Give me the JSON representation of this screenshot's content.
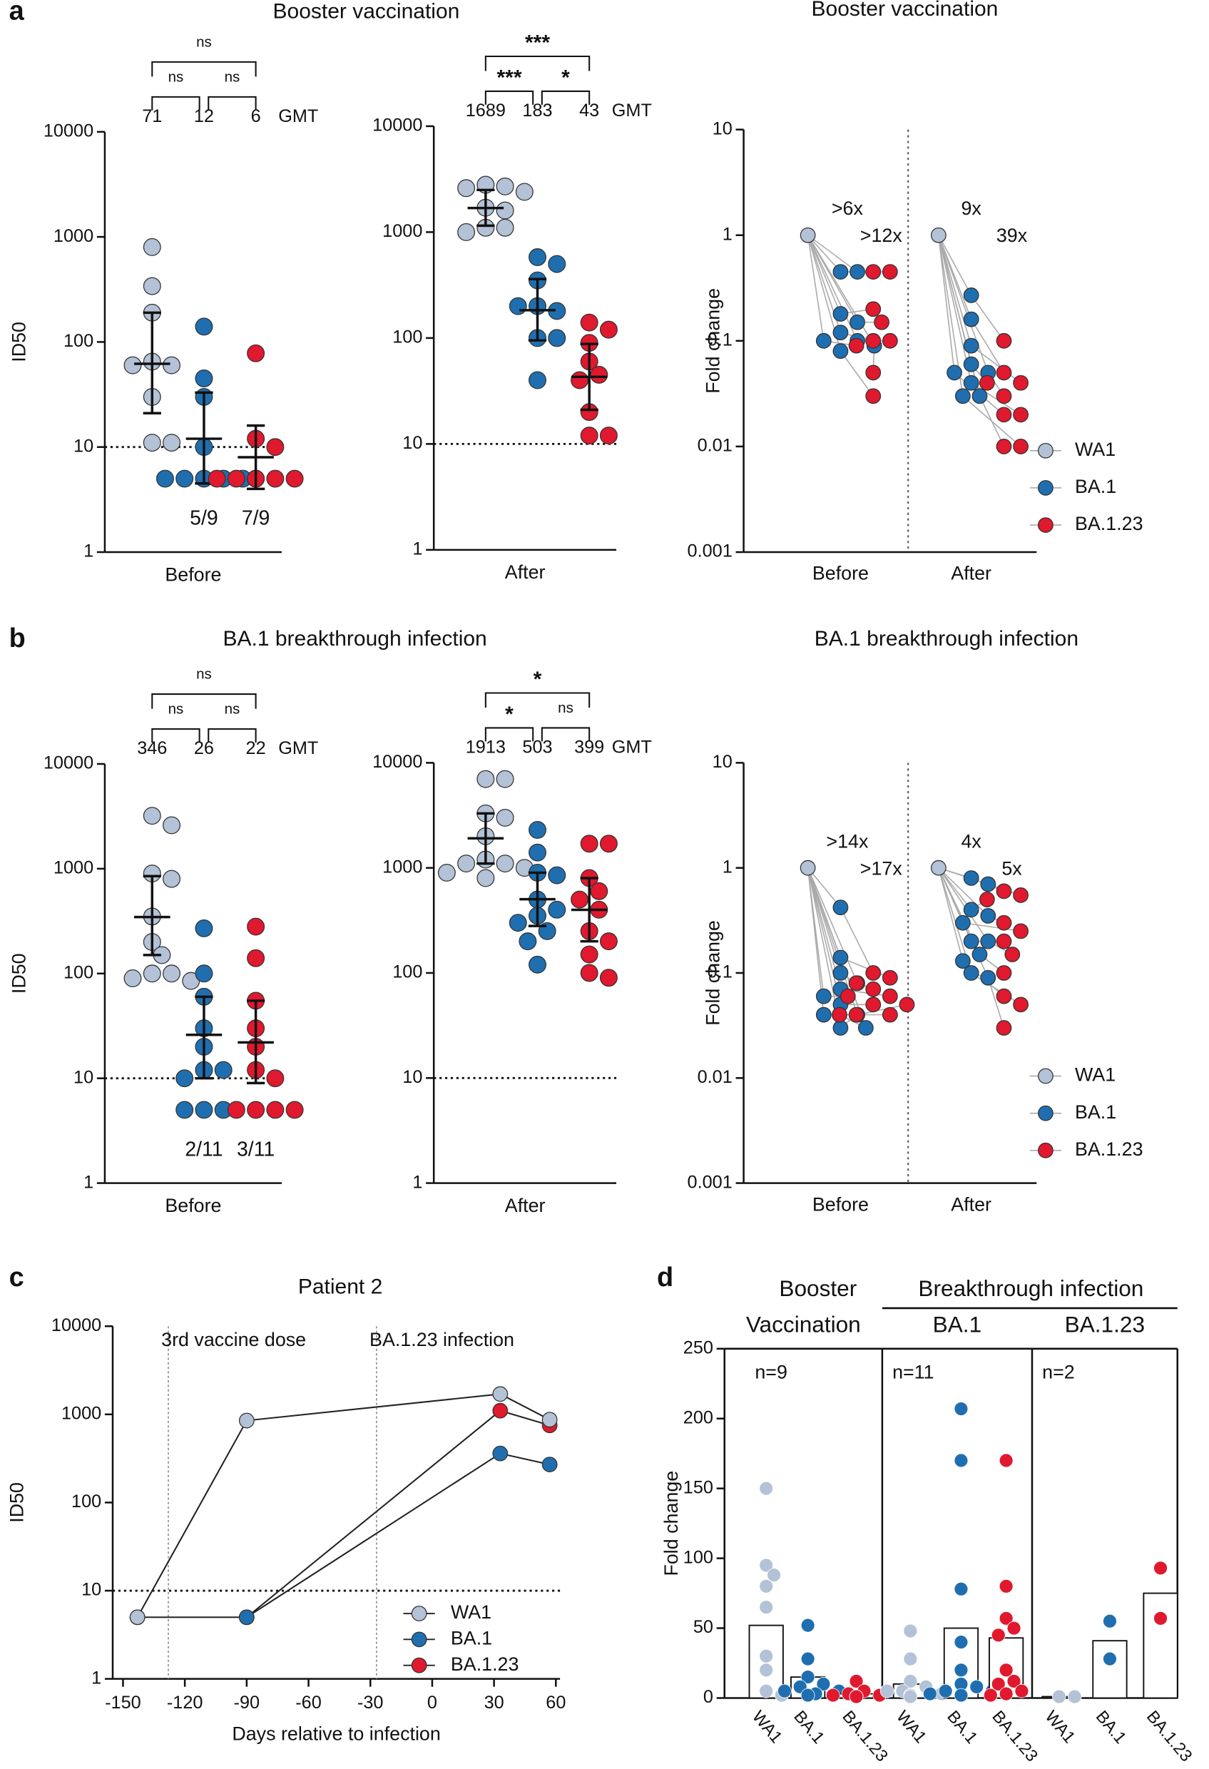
{
  "chart_data": [
    {
      "type": "dot",
      "panel": "a",
      "title": "Booster vaccination",
      "ylabel": "ID50",
      "xlabel": "Before",
      "log": true,
      "ylim": [
        1,
        10000
      ],
      "yticks": [
        1,
        10,
        100,
        1000,
        10000
      ],
      "lod": 10,
      "gmt_label": "GMT",
      "brackets": [
        "ns",
        "ns",
        "ns"
      ],
      "series": [
        {
          "color": "#b3c2d6",
          "values": [
            800,
            340,
            190,
            65,
            60,
            60,
            30,
            11,
            11
          ],
          "gmt": 71,
          "center": 62,
          "ci": [
            21,
            190
          ]
        },
        {
          "color": "#1f6fb0",
          "values": [
            140,
            45,
            30,
            10,
            5,
            5,
            5,
            5,
            5
          ],
          "gmt": 12,
          "center": 12,
          "ci": [
            4.5,
            33
          ],
          "count": "5/9"
        },
        {
          "color": "#e0192e",
          "values": [
            78,
            12,
            10,
            5,
            5,
            5,
            5,
            5,
            5
          ],
          "gmt": 6,
          "center": 8,
          "ci": [
            4,
            16
          ],
          "count": "7/9"
        }
      ]
    },
    {
      "type": "dot",
      "xlabel": "After",
      "log": true,
      "ylim": [
        1,
        10000
      ],
      "yticks": [
        1,
        10,
        100,
        1000,
        10000
      ],
      "lod": 10,
      "gmt_label": "GMT",
      "brackets": [
        "***",
        "***",
        "*"
      ],
      "series": [
        {
          "color": "#b3c2d6",
          "values": [
            2800,
            2700,
            2600,
            2400,
            1700,
            1600,
            1100,
            1100,
            1000
          ],
          "gmt": 1689,
          "center": 1689,
          "ci": [
            1150,
            2500
          ]
        },
        {
          "color": "#1f6fb0",
          "values": [
            580,
            500,
            350,
            200,
            180,
            100,
            100,
            40,
            200
          ],
          "gmt": 183,
          "center": 183,
          "ci": [
            95,
            360
          ]
        },
        {
          "color": "#e0192e",
          "values": [
            140,
            120,
            90,
            60,
            45,
            40,
            20,
            12,
            12
          ],
          "gmt": 43,
          "center": 43,
          "ci": [
            21,
            88
          ]
        }
      ]
    },
    {
      "type": "paired",
      "title": "Booster vaccination",
      "ylabel": "Fold change",
      "categories": [
        "Before",
        "After"
      ],
      "log": true,
      "ylim": [
        0.001,
        10
      ],
      "yticks": [
        0.001,
        0.01,
        0.1,
        1,
        10
      ],
      "series": [
        {
          "name": "WA1",
          "color": "#b3c2d6",
          "values": [
            [
              1
            ],
            [
              1
            ]
          ]
        },
        {
          "name": "BA.1",
          "color": "#1f6fb0",
          "values": [
            [
              0.45,
              0.45,
              0.18,
              0.15,
              0.12,
              0.1,
              0.1,
              0.09,
              0.08
            ],
            [
              0.27,
              0.16,
              0.09,
              0.06,
              0.05,
              0.05,
              0.04,
              0.03,
              0.03
            ]
          ]
        },
        {
          "name": "BA.1.23",
          "color": "#e0192e",
          "values": [
            [
              0.45,
              0.45,
              0.2,
              0.15,
              0.1,
              0.1,
              0.09,
              0.05,
              0.03
            ],
            [
              0.1,
              0.05,
              0.04,
              0.04,
              0.03,
              0.02,
              0.02,
              0.01,
              0.01
            ]
          ]
        }
      ],
      "annotations": [
        {
          "text": ">6x",
          "color": "#1f6fb0"
        },
        {
          "text": ">12x",
          "color": "#e0192e"
        },
        {
          "text": "9x",
          "color": "#1f6fb0"
        },
        {
          "text": "39x",
          "color": "#e0192e"
        }
      ]
    },
    {
      "type": "dot",
      "panel": "b",
      "title": "BA.1 breakthrough infection",
      "ylabel": "ID50",
      "xlabel": "Before",
      "log": true,
      "ylim": [
        1,
        10000
      ],
      "yticks": [
        1,
        10,
        100,
        1000,
        10000
      ],
      "lod": 10,
      "gmt_label": "GMT",
      "brackets": [
        "ns",
        "ns",
        "ns"
      ],
      "series": [
        {
          "color": "#b3c2d6",
          "values": [
            3200,
            2600,
            900,
            800,
            350,
            200,
            150,
            100,
            100,
            90,
            85
          ],
          "gmt": 346,
          "center": 346,
          "ci": [
            150,
            850
          ]
        },
        {
          "color": "#1f6fb0",
          "values": [
            270,
            100,
            60,
            30,
            20,
            12,
            12,
            10,
            5,
            5,
            5
          ],
          "gmt": 26,
          "center": 26,
          "ci": [
            10,
            60
          ],
          "count": "2/11"
        },
        {
          "color": "#e0192e",
          "values": [
            280,
            140,
            55,
            30,
            20,
            12,
            10,
            5,
            5,
            5,
            5
          ],
          "gmt": 22,
          "center": 22,
          "ci": [
            9,
            55
          ],
          "count": "3/11"
        }
      ]
    },
    {
      "type": "dot",
      "xlabel": "After",
      "log": true,
      "ylim": [
        1,
        10000
      ],
      "yticks": [
        1,
        10,
        100,
        1000,
        10000
      ],
      "lod": 10,
      "gmt_label": "GMT",
      "brackets": [
        "*",
        "*",
        "ns"
      ],
      "series": [
        {
          "color": "#b3c2d6",
          "values": [
            7000,
            7000,
            3300,
            3000,
            2000,
            1200,
            1100,
            1100,
            1000,
            900,
            800
          ],
          "gmt": 1913,
          "center": 1913,
          "ci": [
            1100,
            3300
          ]
        },
        {
          "color": "#1f6fb0",
          "values": [
            2300,
            1400,
            900,
            850,
            500,
            400,
            350,
            300,
            250,
            200,
            120
          ],
          "gmt": 503,
          "center": 503,
          "ci": [
            280,
            900
          ]
        },
        {
          "color": "#e0192e",
          "values": [
            1700,
            1700,
            800,
            600,
            500,
            400,
            250,
            200,
            150,
            100,
            90
          ],
          "gmt": 399,
          "center": 399,
          "ci": [
            200,
            800
          ]
        }
      ]
    },
    {
      "type": "paired",
      "title": "BA.1 breakthrough infection",
      "ylabel": "Fold change",
      "categories": [
        "Before",
        "After"
      ],
      "log": true,
      "ylim": [
        0.001,
        10
      ],
      "yticks": [
        0.001,
        0.01,
        0.1,
        1,
        10
      ],
      "series": [
        {
          "name": "WA1",
          "color": "#b3c2d6",
          "values": [
            [
              1
            ],
            [
              1
            ]
          ]
        },
        {
          "name": "BA.1",
          "color": "#1f6fb0",
          "values": [
            [
              0.42,
              0.14,
              0.1,
              0.08,
              0.07,
              0.06,
              0.05,
              0.04,
              0.04,
              0.03,
              0.03
            ],
            [
              0.8,
              0.7,
              0.4,
              0.35,
              0.3,
              0.2,
              0.2,
              0.15,
              0.13,
              0.1,
              0.09
            ]
          ]
        },
        {
          "name": "BA.1.23",
          "color": "#e0192e",
          "values": [
            [
              0.1,
              0.09,
              0.08,
              0.07,
              0.06,
              0.06,
              0.05,
              0.05,
              0.04,
              0.04,
              0.04
            ],
            [
              0.6,
              0.55,
              0.5,
              0.3,
              0.25,
              0.2,
              0.15,
              0.1,
              0.06,
              0.05,
              0.03
            ]
          ]
        }
      ],
      "annotations": [
        {
          "text": ">14x",
          "color": "#1f6fb0"
        },
        {
          "text": ">17x",
          "color": "#e0192e"
        },
        {
          "text": "4x",
          "color": "#1f6fb0"
        },
        {
          "text": "5x",
          "color": "#e0192e"
        }
      ]
    },
    {
      "type": "line",
      "panel": "c",
      "title": "Patient 2",
      "xlabel": "Days relative to infection",
      "ylabel": "ID50",
      "log": true,
      "xlim": [
        -155,
        62
      ],
      "xticks": [
        -150,
        -120,
        -90,
        -60,
        -30,
        0,
        30,
        60
      ],
      "ylim": [
        1,
        10000
      ],
      "yticks": [
        1,
        10,
        100,
        1000,
        10000
      ],
      "lod": 10,
      "events": [
        {
          "x": -128,
          "label": "3rd vaccine dose"
        },
        {
          "x": -27,
          "label": "BA.1.23  infection"
        }
      ],
      "series": [
        {
          "name": "WA1",
          "color": "#b3c2d6",
          "x": [
            -143,
            -90,
            33,
            57
          ],
          "values": [
            5,
            850,
            1700,
            870
          ]
        },
        {
          "name": "BA.1",
          "color": "#1f6fb0",
          "x": [
            -143,
            -90,
            33,
            57
          ],
          "values": [
            5,
            5,
            360,
            270
          ]
        },
        {
          "name": "BA.1.23",
          "color": "#e0192e",
          "x": [
            -90,
            33,
            57
          ],
          "values": [
            5,
            1100,
            750
          ]
        }
      ]
    },
    {
      "type": "bar",
      "panel": "d",
      "ylabel": "Fold change",
      "ylim": [
        0,
        250
      ],
      "yticks": [
        0,
        50,
        100,
        150,
        200,
        250
      ],
      "headers": [
        "Booster",
        "Breakthrough infection"
      ],
      "colors": [
        "#b3c2d6",
        "#1f6fb0",
        "#e0192e"
      ],
      "groups": [
        {
          "title": "Vaccination",
          "n": "n=9",
          "categories": [
            "WA1",
            "BA.1",
            "BA.1.23"
          ],
          "values": [
            52,
            15,
            3
          ],
          "points": [
            [
              150,
              95,
              88,
              80,
              65,
              30,
              20,
              5,
              2
            ],
            [
              52,
              28,
              15,
              10,
              8,
              5,
              5,
              3,
              2
            ],
            [
              12,
              5,
              3,
              2,
              2,
              1,
              1,
              1,
              1
            ]
          ]
        },
        {
          "title": "BA.1",
          "n": "n=11",
          "categories": [
            "WA1",
            "BA.1",
            "BA.1.23"
          ],
          "values": [
            10,
            50,
            43
          ],
          "points": [
            [
              48,
              28,
              12,
              8,
              5,
              5,
              3,
              2,
              2,
              1,
              1
            ],
            [
              207,
              170,
              78,
              40,
              20,
              10,
              8,
              5,
              5,
              3,
              2
            ],
            [
              170,
              80,
              57,
              50,
              45,
              20,
              12,
              10,
              5,
              3,
              2
            ]
          ]
        },
        {
          "title": "BA.1.23",
          "n": "n=2",
          "categories": [
            "WA1",
            "BA.1",
            "BA.1.23"
          ],
          "values": [
            1,
            41,
            75
          ],
          "points": [
            [
              1,
              1
            ],
            [
              55,
              28
            ],
            [
              93,
              57
            ]
          ]
        }
      ]
    }
  ]
}
